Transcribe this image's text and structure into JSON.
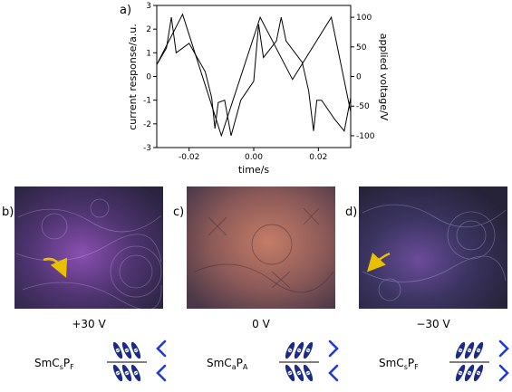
{
  "chart_data": {
    "type": "line",
    "panel_label": "a)",
    "xlabel": "time/s",
    "ylabel_left": "current response/a.u.",
    "ylabel_right": "applied voltage/V",
    "xlim": [
      -0.03,
      0.03
    ],
    "ylim_left": [
      -3,
      3
    ],
    "ylim_right": [
      -120,
      120
    ],
    "x_ticks": [
      "-0.02",
      "0.00",
      "0.02"
    ],
    "y_left_ticks": [
      "-3",
      "-2",
      "-1",
      "0",
      "1",
      "2",
      "3"
    ],
    "y_right_ticks": [
      "-100",
      "-50",
      "0",
      "50",
      "100"
    ],
    "series": [
      {
        "role": "applied voltage (triangle wave)",
        "x": [
          -0.03,
          -0.022,
          -0.01,
          0.002,
          0.012,
          0.024,
          0.03
        ],
        "y_volts": [
          20,
          105,
          -100,
          100,
          -5,
          100,
          -60
        ]
      },
      {
        "role": "current response",
        "x": [
          -0.03,
          -0.027,
          -0.0255,
          -0.024,
          -0.02,
          -0.015,
          -0.013,
          -0.012,
          -0.011,
          -0.009,
          -0.007,
          -0.004,
          0.0,
          0.0015,
          0.003,
          0.007,
          0.0085,
          0.01,
          0.015,
          0.017,
          0.0185,
          0.0195,
          0.021,
          0.025,
          0.028,
          0.03
        ],
        "y": [
          0.5,
          1.2,
          2.5,
          1.0,
          1.4,
          0.2,
          -0.9,
          -2.2,
          -1.1,
          -1.0,
          -2.5,
          -1.0,
          -0.2,
          2.2,
          0.8,
          1.5,
          2.5,
          1.5,
          0.6,
          -0.6,
          -2.3,
          -1.0,
          -1.0,
          -1.8,
          -2.3,
          -0.9
        ]
      }
    ]
  },
  "panels": [
    {
      "label": "b)",
      "voltage": "+30 V",
      "phase": "SmC",
      "sub1": "s",
      "mid": "P",
      "sub2": "F"
    },
    {
      "label": "c)",
      "voltage": "0 V",
      "phase": "SmC",
      "sub1": "a",
      "mid": "P",
      "sub2": "A"
    },
    {
      "label": "d)",
      "voltage": "−30 V",
      "phase": "SmC",
      "sub1": "s",
      "mid": "P",
      "sub2": "F"
    }
  ],
  "colors": {
    "texture_dark": "#2a2440",
    "texture_purple": "#7a4a9a",
    "texture_copper": "#b07060",
    "arrow_yellow": "#e8c000",
    "molecule_blue": "#1a2a8a",
    "chevron_blue": "#1f3bd6"
  },
  "icons": [
    "yellow-arrow-icon",
    "molecule-icon",
    "chevron-icon"
  ]
}
